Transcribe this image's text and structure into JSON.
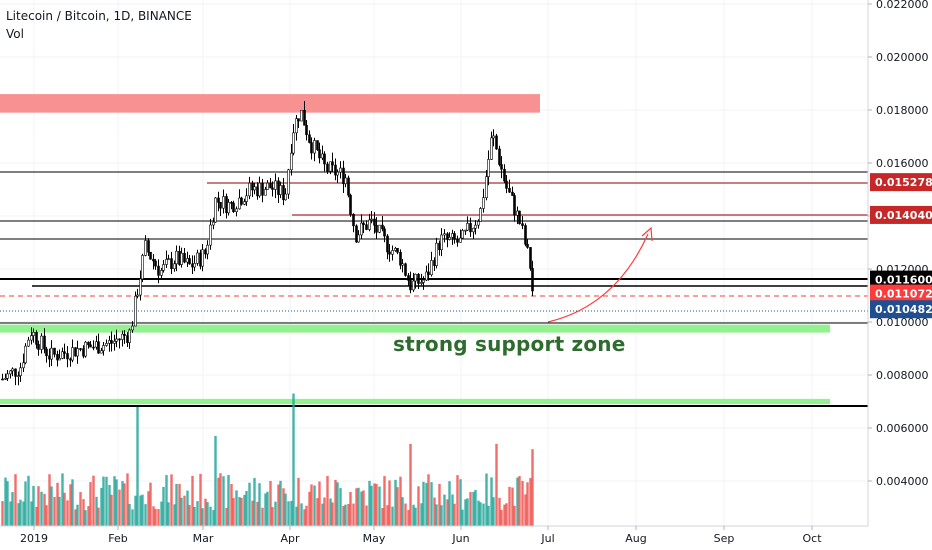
{
  "header": {
    "symbol": "Litecoin / Bitcoin, 1D, BINANCE",
    "indicator": "Vol"
  },
  "annotation": {
    "text": "strong support zone"
  },
  "colors": {
    "up": "#26a69a",
    "down": "#ef5350",
    "resistance_zone": "#f77f7f",
    "support_zone": "#8ef08a",
    "annotation": "#2e6b2e",
    "arrow": "#ff3b3b",
    "last_price": "#1f4e91",
    "price_level": "#c62828"
  },
  "chart_data": {
    "type": "candlestick",
    "x_ticks": [
      "2019",
      "Feb",
      "Mar",
      "Apr",
      "May",
      "Jun",
      "Jul",
      "Aug",
      "Sep",
      "Oct"
    ],
    "y_ticks": [
      "0.004000",
      "0.006000",
      "0.008000",
      "0.010000",
      "0.012000",
      "0.014000",
      "0.016000",
      "0.018000",
      "0.020000",
      "0.022000"
    ],
    "ylim": [
      0.0027,
      0.0225
    ],
    "price_labels": [
      {
        "value": 0.015278,
        "text": "0.015278",
        "color": "#c62828"
      },
      {
        "value": 0.01404,
        "text": "0.014040",
        "color": "#c62828"
      },
      {
        "value": 0.0116,
        "text": "0.011600",
        "color": "#000000"
      },
      {
        "value": 0.011072,
        "text": "0.011072",
        "color": "#ff3b3b"
      },
      {
        "value": 0.010482,
        "text": "0.010482",
        "color": "#1f4e91"
      }
    ],
    "zones": [
      {
        "kind": "resistance",
        "from": 0.0179,
        "to": 0.0186
      },
      {
        "kind": "support",
        "from": 0.0096,
        "to": 0.0099
      },
      {
        "kind": "support",
        "from": 0.0069,
        "to": 0.0071
      }
    ],
    "series": [
      {
        "name": "Litecoin / Bitcoin",
        "keypoints": [
          [
            0,
            0.0078
          ],
          [
            20,
            0.0083
          ],
          [
            30,
            0.0097
          ],
          [
            50,
            0.0087
          ],
          [
            80,
            0.009
          ],
          [
            110,
            0.0092
          ],
          [
            130,
            0.0096
          ],
          [
            137,
            0.0112
          ],
          [
            145,
            0.0128
          ],
          [
            160,
            0.0119
          ],
          [
            175,
            0.0124
          ],
          [
            190,
            0.0121
          ],
          [
            205,
            0.0126
          ],
          [
            215,
            0.0146
          ],
          [
            230,
            0.0144
          ],
          [
            250,
            0.015
          ],
          [
            270,
            0.0151
          ],
          [
            285,
            0.0148
          ],
          [
            292,
            0.0172
          ],
          [
            300,
            0.018
          ],
          [
            310,
            0.0168
          ],
          [
            325,
            0.0158
          ],
          [
            345,
            0.0155
          ],
          [
            355,
            0.0133
          ],
          [
            370,
            0.0138
          ],
          [
            385,
            0.013
          ],
          [
            400,
            0.0124
          ],
          [
            410,
            0.0114
          ],
          [
            425,
            0.0116
          ],
          [
            440,
            0.0131
          ],
          [
            460,
            0.013
          ],
          [
            480,
            0.0141
          ],
          [
            492,
            0.0171
          ],
          [
            505,
            0.0152
          ],
          [
            520,
            0.0137
          ],
          [
            530,
            0.0121
          ],
          [
            535,
            0.0102
          ]
        ]
      },
      {
        "name": "Vol",
        "peaks": [
          [
            137,
            0.0068
          ],
          [
            293,
            0.0073
          ],
          [
            495,
            0.0054
          ],
          [
            533,
            0.0052
          ],
          [
            410,
            0.0054
          ],
          [
            215,
            0.0057
          ]
        ]
      }
    ]
  }
}
